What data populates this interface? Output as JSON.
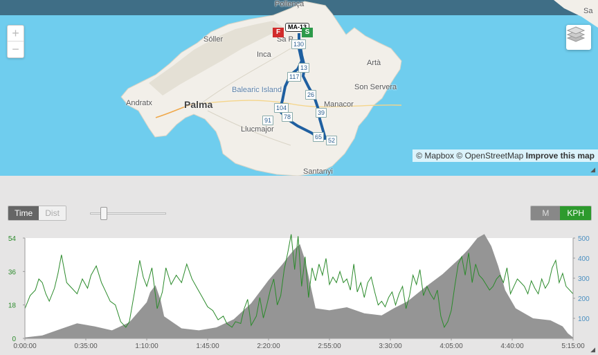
{
  "map": {
    "zoom_in": "+",
    "zoom_out": "−",
    "labels": {
      "pollenca": "Pollença",
      "soller": "Sóller",
      "inca": "Inca",
      "arta": "Artà",
      "son_servera": "Son Servera",
      "andratx": "Andratx",
      "palma": "Palma",
      "balearic": "Balearic Island",
      "manacor": "Manacor",
      "llucmajor": "Llucmajor",
      "santanyi": "Santanyi",
      "sa": "Sa",
      "sa_pobla": "Sa P"
    },
    "road_shield": "MA-13",
    "flag_finish": "F",
    "flag_start": "S",
    "km_markers": [
      "130",
      "13",
      "117",
      "26",
      "104",
      "39",
      "91",
      "78",
      "65",
      "52"
    ],
    "attribution": {
      "mapbox": "© Mapbox",
      "osm": "© OpenStreetMap",
      "improve": "Improve this map"
    },
    "colors": {
      "water": "#6fcdee",
      "land": "#f2efe9",
      "route": "#1f5fa0"
    }
  },
  "controls": {
    "time_label": "Time",
    "dist_label": "Dist",
    "unit_m": "M",
    "unit_kph": "KPH",
    "zoom_slider_value": 0.2
  },
  "chart_data": {
    "type": "area",
    "x_ticks": [
      "0:00:00",
      "0:35:00",
      "1:10:00",
      "1:45:00",
      "2:20:00",
      "2:55:00",
      "3:30:00",
      "4:05:00",
      "4:40:00",
      "5:15:00"
    ],
    "y_left_ticks": [
      "0",
      "18",
      "36",
      "54"
    ],
    "y_right_ticks": [
      "100",
      "200",
      "300",
      "400",
      "500"
    ],
    "y_left_range": [
      0,
      54
    ],
    "y_right_range": [
      0,
      500
    ],
    "x_range_minutes": [
      0,
      315
    ],
    "elevation": {
      "color": "#8a8a8a",
      "points": [
        [
          0,
          5
        ],
        [
          10,
          15
        ],
        [
          20,
          45
        ],
        [
          30,
          75
        ],
        [
          40,
          60
        ],
        [
          50,
          40
        ],
        [
          60,
          80
        ],
        [
          70,
          180
        ],
        [
          72,
          230
        ],
        [
          75,
          265
        ],
        [
          78,
          190
        ],
        [
          80,
          110
        ],
        [
          90,
          50
        ],
        [
          100,
          40
        ],
        [
          110,
          55
        ],
        [
          120,
          95
        ],
        [
          130,
          175
        ],
        [
          140,
          290
        ],
        [
          148,
          370
        ],
        [
          152,
          415
        ],
        [
          155,
          445
        ],
        [
          158,
          470
        ],
        [
          161,
          390
        ],
        [
          164,
          270
        ],
        [
          167,
          150
        ],
        [
          175,
          140
        ],
        [
          185,
          155
        ],
        [
          195,
          125
        ],
        [
          205,
          115
        ],
        [
          212,
          150
        ],
        [
          220,
          185
        ],
        [
          230,
          255
        ],
        [
          240,
          320
        ],
        [
          250,
          400
        ],
        [
          255,
          445
        ],
        [
          260,
          500
        ],
        [
          264,
          520
        ],
        [
          268,
          460
        ],
        [
          272,
          360
        ],
        [
          276,
          240
        ],
        [
          282,
          150
        ],
        [
          292,
          100
        ],
        [
          302,
          90
        ],
        [
          309,
          60
        ],
        [
          312,
          25
        ],
        [
          315,
          5
        ]
      ]
    },
    "speed": {
      "color": "#2a8a2a",
      "points": [
        [
          0,
          16
        ],
        [
          3,
          23
        ],
        [
          6,
          26
        ],
        [
          8,
          32
        ],
        [
          10,
          30
        ],
        [
          12,
          24
        ],
        [
          14,
          20
        ],
        [
          17,
          27
        ],
        [
          19,
          35
        ],
        [
          21,
          45
        ],
        [
          24,
          30
        ],
        [
          27,
          27
        ],
        [
          30,
          24
        ],
        [
          33,
          32
        ],
        [
          36,
          27
        ],
        [
          38,
          34
        ],
        [
          41,
          39
        ],
        [
          44,
          30
        ],
        [
          46,
          26
        ],
        [
          49,
          20
        ],
        [
          52,
          18
        ],
        [
          55,
          9
        ],
        [
          58,
          6
        ],
        [
          60,
          9
        ],
        [
          63,
          25
        ],
        [
          66,
          42
        ],
        [
          68,
          33
        ],
        [
          70,
          28
        ],
        [
          73,
          38
        ],
        [
          76,
          16
        ],
        [
          79,
          25
        ],
        [
          81,
          38
        ],
        [
          84,
          29
        ],
        [
          87,
          34
        ],
        [
          90,
          30
        ],
        [
          93,
          40
        ],
        [
          96,
          32
        ],
        [
          99,
          27
        ],
        [
          102,
          22
        ],
        [
          105,
          17
        ],
        [
          108,
          15
        ],
        [
          111,
          10
        ],
        [
          114,
          12
        ],
        [
          116,
          8
        ],
        [
          119,
          6
        ],
        [
          121,
          9
        ],
        [
          124,
          8
        ],
        [
          126,
          16
        ],
        [
          128,
          21
        ],
        [
          130,
          7
        ],
        [
          133,
          12
        ],
        [
          135,
          22
        ],
        [
          137,
          11
        ],
        [
          139,
          18
        ],
        [
          141,
          26
        ],
        [
          143,
          32
        ],
        [
          145,
          18
        ],
        [
          147,
          23
        ],
        [
          149,
          37
        ],
        [
          151,
          46
        ],
        [
          153,
          56
        ],
        [
          155,
          37
        ],
        [
          157,
          55
        ],
        [
          159,
          28
        ],
        [
          161,
          44
        ],
        [
          163,
          22
        ],
        [
          165,
          38
        ],
        [
          167,
          31
        ],
        [
          169,
          40
        ],
        [
          171,
          34
        ],
        [
          173,
          43
        ],
        [
          175,
          29
        ],
        [
          177,
          33
        ],
        [
          179,
          30
        ],
        [
          181,
          36
        ],
        [
          183,
          30
        ],
        [
          185,
          32
        ],
        [
          187,
          26
        ],
        [
          189,
          40
        ],
        [
          191,
          25
        ],
        [
          193,
          30
        ],
        [
          195,
          22
        ],
        [
          197,
          30
        ],
        [
          199,
          33
        ],
        [
          201,
          25
        ],
        [
          203,
          18
        ],
        [
          205,
          20
        ],
        [
          207,
          17
        ],
        [
          209,
          22
        ],
        [
          211,
          25
        ],
        [
          213,
          18
        ],
        [
          215,
          24
        ],
        [
          217,
          28
        ],
        [
          219,
          16
        ],
        [
          221,
          23
        ],
        [
          223,
          34
        ],
        [
          225,
          29
        ],
        [
          227,
          37
        ],
        [
          229,
          23
        ],
        [
          231,
          28
        ],
        [
          233,
          24
        ],
        [
          235,
          21
        ],
        [
          237,
          26
        ],
        [
          239,
          12
        ],
        [
          241,
          6
        ],
        [
          243,
          9
        ],
        [
          245,
          15
        ],
        [
          247,
          28
        ],
        [
          249,
          40
        ],
        [
          251,
          44
        ],
        [
          253,
          34
        ],
        [
          255,
          46
        ],
        [
          257,
          30
        ],
        [
          259,
          40
        ],
        [
          261,
          34
        ],
        [
          263,
          32
        ],
        [
          265,
          29
        ],
        [
          267,
          26
        ],
        [
          269,
          28
        ],
        [
          271,
          32
        ],
        [
          273,
          34
        ],
        [
          275,
          30
        ],
        [
          277,
          38
        ],
        [
          279,
          24
        ],
        [
          281,
          28
        ],
        [
          283,
          32
        ],
        [
          285,
          30
        ],
        [
          287,
          28
        ],
        [
          289,
          24
        ],
        [
          291,
          31
        ],
        [
          293,
          27
        ],
        [
          295,
          24
        ],
        [
          297,
          32
        ],
        [
          299,
          27
        ],
        [
          301,
          30
        ],
        [
          303,
          38
        ],
        [
          305,
          42
        ],
        [
          307,
          30
        ],
        [
          309,
          35
        ],
        [
          311,
          28
        ],
        [
          313,
          26
        ],
        [
          315,
          24
        ]
      ]
    }
  }
}
